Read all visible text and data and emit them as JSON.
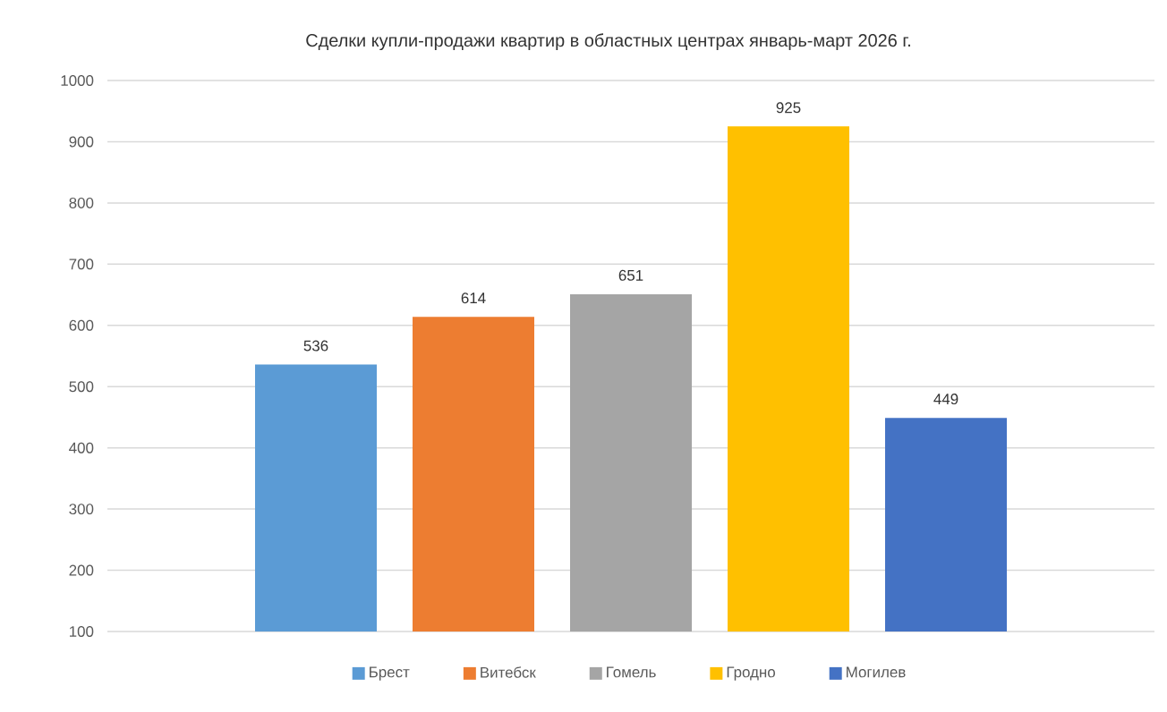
{
  "chart_data": {
    "type": "bar",
    "title": "Сделки купли-продажи квартир в областных центрах январь-март 2026 г.",
    "categories": [
      null
    ],
    "series": [
      {
        "name": "Брест",
        "color": "#5b9bd5",
        "values": [
          536
        ]
      },
      {
        "name": "Витебск",
        "color": "#ed7d31",
        "values": [
          614
        ]
      },
      {
        "name": "Гомель",
        "color": "#a5a5a5",
        "values": [
          651
        ]
      },
      {
        "name": "Гродно",
        "color": "#ffc000",
        "values": [
          925
        ]
      },
      {
        "name": "Могилев",
        "color": "#4472c4",
        "values": [
          449
        ]
      }
    ],
    "ylim": [
      100,
      1000
    ],
    "yticks": [
      100,
      200,
      300,
      400,
      500,
      600,
      700,
      800,
      900,
      1000
    ],
    "grid": "y",
    "legend": "bottom",
    "data_labels": true
  }
}
